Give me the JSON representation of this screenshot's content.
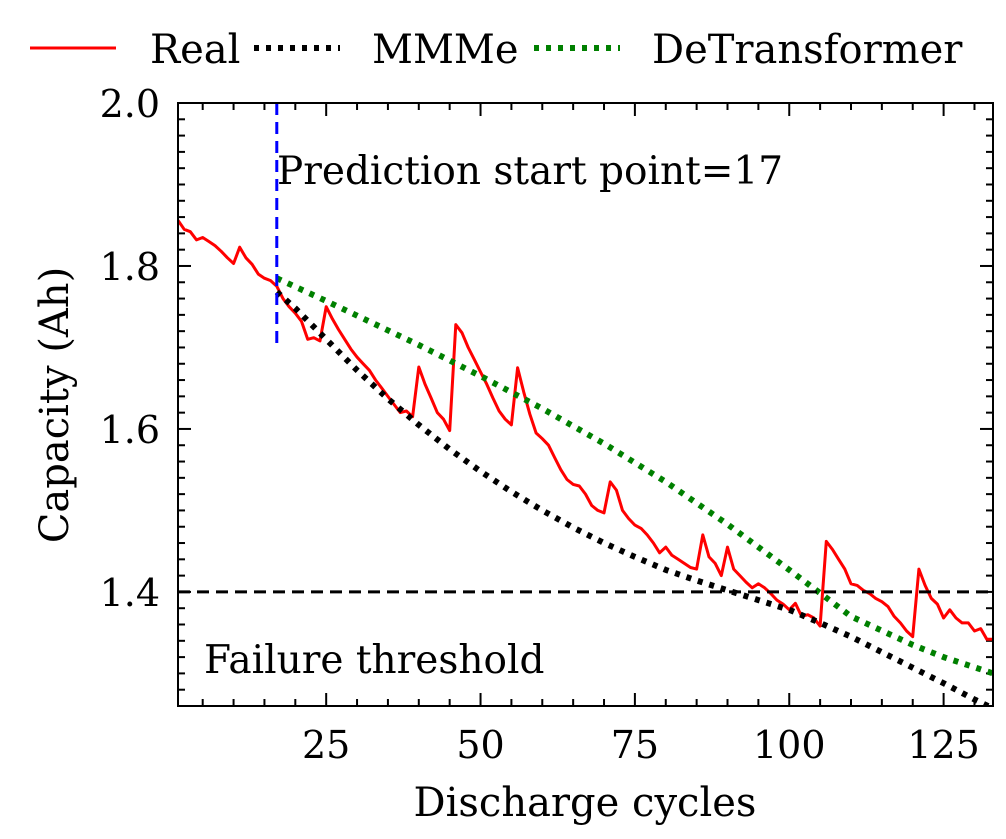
{
  "chart_data": {
    "type": "line",
    "xlabel": "Discharge cycles",
    "ylabel": "Capacity (Ah)",
    "xlim": [
      1,
      133
    ],
    "ylim": [
      1.26,
      2.0
    ],
    "xticks": [
      25,
      50,
      75,
      100,
      125
    ],
    "yticks": [
      1.4,
      1.6,
      1.8,
      2.0
    ],
    "xtick_labels": [
      "25",
      "50",
      "75",
      "100",
      "125"
    ],
    "ytick_labels": [
      "1.4",
      "1.6",
      "1.8",
      "2.0"
    ],
    "grid": false,
    "legend": {
      "position": "top, outside plot",
      "entries": [
        "Real",
        "MMMe",
        "DeTransformer"
      ]
    },
    "series": [
      {
        "name": "Real",
        "color": "#ff0000",
        "style": "solid",
        "x": [
          1,
          2,
          3,
          4,
          5,
          6,
          7,
          8,
          9,
          10,
          11,
          12,
          13,
          14,
          15,
          16,
          17,
          18,
          19,
          20,
          21,
          22,
          23,
          24,
          25,
          26,
          27,
          28,
          29,
          30,
          31,
          32,
          33,
          34,
          35,
          36,
          37,
          38,
          39,
          40,
          41,
          42,
          43,
          44,
          45,
          46,
          47,
          48,
          49,
          50,
          51,
          52,
          53,
          54,
          55,
          56,
          57,
          58,
          59,
          60,
          61,
          62,
          63,
          64,
          65,
          66,
          67,
          68,
          69,
          70,
          71,
          72,
          73,
          74,
          75,
          76,
          77,
          78,
          79,
          80,
          81,
          82,
          83,
          84,
          85,
          86,
          87,
          88,
          89,
          90,
          91,
          92,
          93,
          94,
          95,
          96,
          97,
          98,
          99,
          100,
          101,
          102,
          103,
          104,
          105,
          106,
          107,
          108,
          109,
          110,
          111,
          112,
          113,
          114,
          115,
          116,
          117,
          118,
          119,
          120,
          121,
          122,
          123,
          124,
          125,
          126,
          127,
          128,
          129,
          130,
          131,
          132,
          133
        ],
        "y": [
          1.856,
          1.845,
          1.842,
          1.832,
          1.835,
          1.83,
          1.825,
          1.818,
          1.81,
          1.803,
          1.823,
          1.81,
          1.802,
          1.79,
          1.785,
          1.782,
          1.775,
          1.76,
          1.75,
          1.742,
          1.732,
          1.71,
          1.712,
          1.708,
          1.75,
          1.735,
          1.722,
          1.71,
          1.698,
          1.688,
          1.68,
          1.672,
          1.66,
          1.65,
          1.64,
          1.63,
          1.62,
          1.622,
          1.615,
          1.676,
          1.655,
          1.638,
          1.62,
          1.612,
          1.598,
          1.728,
          1.718,
          1.7,
          1.685,
          1.67,
          1.655,
          1.638,
          1.622,
          1.612,
          1.605,
          1.675,
          1.645,
          1.618,
          1.595,
          1.588,
          1.58,
          1.565,
          1.55,
          1.538,
          1.532,
          1.53,
          1.52,
          1.506,
          1.5,
          1.497,
          1.535,
          1.525,
          1.5,
          1.49,
          1.482,
          1.478,
          1.47,
          1.46,
          1.448,
          1.455,
          1.445,
          1.44,
          1.435,
          1.43,
          1.428,
          1.47,
          1.443,
          1.435,
          1.42,
          1.455,
          1.428,
          1.42,
          1.412,
          1.405,
          1.41,
          1.405,
          1.398,
          1.39,
          1.385,
          1.378,
          1.386,
          1.37,
          1.372,
          1.368,
          1.358,
          1.462,
          1.452,
          1.44,
          1.428,
          1.41,
          1.408,
          1.402,
          1.398,
          1.392,
          1.388,
          1.382,
          1.37,
          1.362,
          1.352,
          1.345,
          1.428,
          1.408,
          1.392,
          1.385,
          1.368,
          1.378,
          1.368,
          1.362,
          1.362,
          1.352,
          1.355,
          1.342,
          1.342
        ]
      },
      {
        "name": "MMMe",
        "color": "#000000",
        "style": "dotted",
        "x": [
          17,
          20,
          25,
          30,
          35,
          40,
          45,
          50,
          55,
          60,
          65,
          70,
          75,
          80,
          85,
          90,
          95,
          100,
          105,
          110,
          115,
          120,
          125,
          130,
          133
        ],
        "y": [
          1.768,
          1.748,
          1.71,
          1.672,
          1.637,
          1.605,
          1.575,
          1.548,
          1.523,
          1.5,
          1.479,
          1.46,
          1.443,
          1.427,
          1.414,
          1.402,
          1.39,
          1.378,
          1.362,
          1.345,
          1.326,
          1.307,
          1.288,
          1.268,
          1.257
        ]
      },
      {
        "name": "DeTransformer",
        "color": "#008000",
        "style": "dotted",
        "x": [
          17,
          25,
          40,
          50,
          60,
          70,
          80,
          90,
          100,
          110,
          120,
          125,
          133
        ],
        "y": [
          1.785,
          1.757,
          1.703,
          1.665,
          1.625,
          1.582,
          1.535,
          1.483,
          1.427,
          1.37,
          1.335,
          1.32,
          1.3
        ]
      }
    ],
    "reference_lines": [
      {
        "type": "horizontal",
        "y": 1.4,
        "color": "#000000",
        "style": "dashed",
        "label": "Failure threshold"
      },
      {
        "type": "vertical",
        "x": 17,
        "y_range": [
          1.7,
          2.0
        ],
        "color": "#0000ff",
        "style": "dashed",
        "label": "Prediction start point=17"
      }
    ]
  }
}
